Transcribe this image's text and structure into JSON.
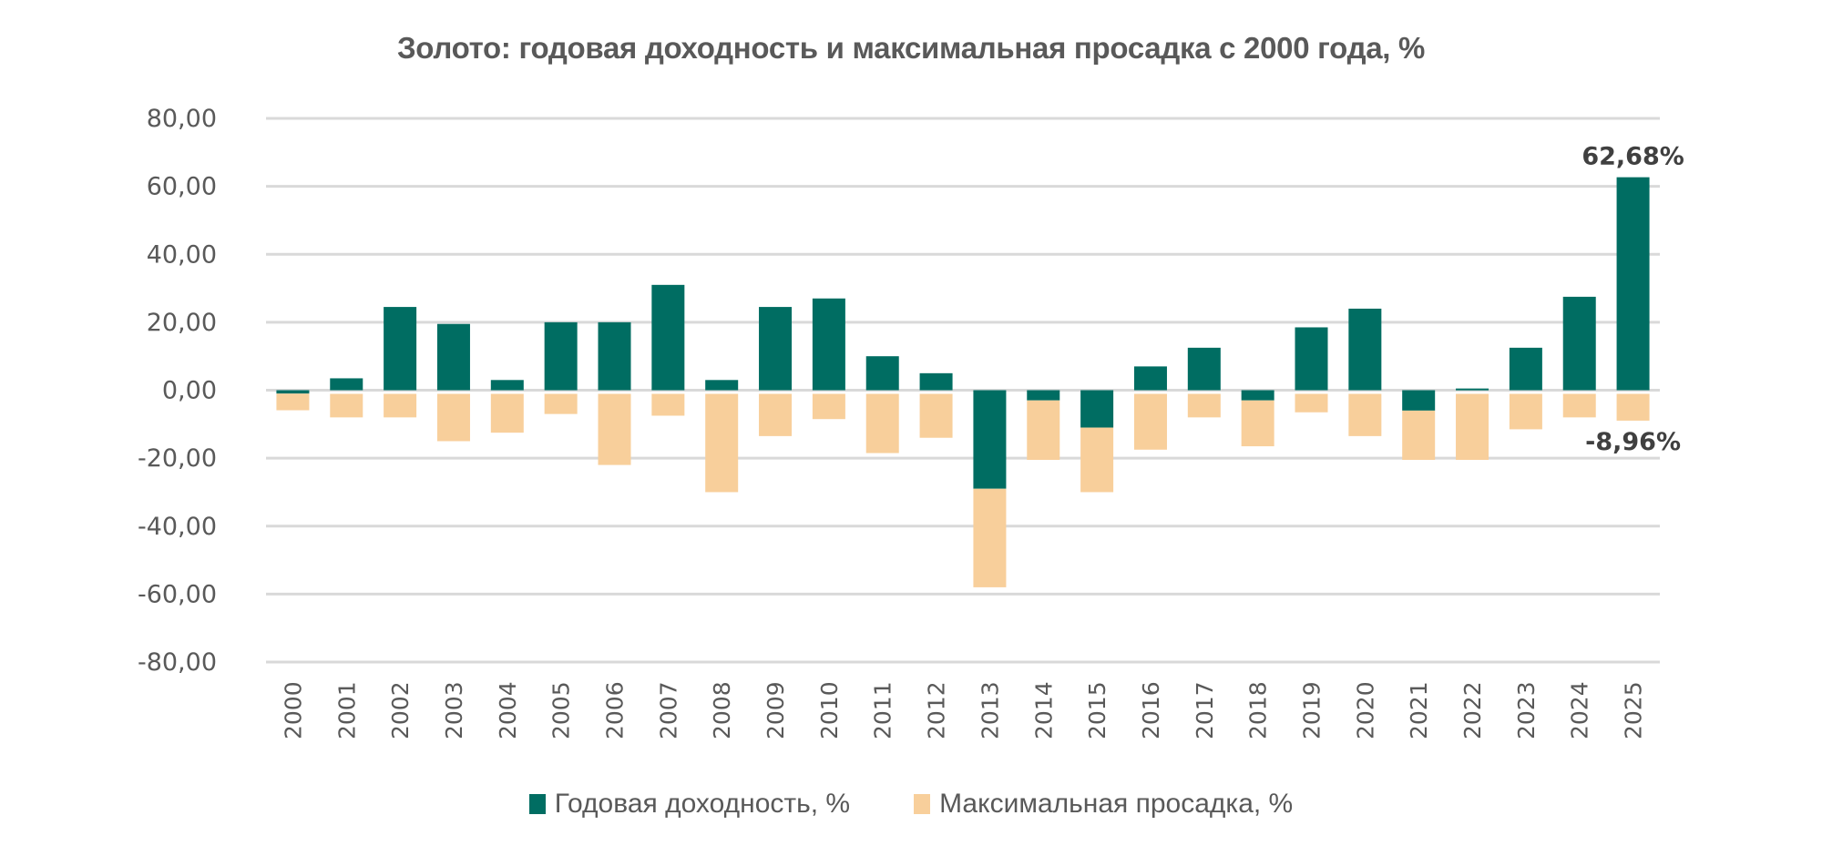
{
  "chart_data": {
    "type": "bar",
    "stacked": true,
    "title": "Золото: годовая доходность и максимальная просадка с 2000 года, %",
    "xlabel": "",
    "ylabel": "",
    "ylim": [
      -80,
      80
    ],
    "yticks": [
      80,
      60,
      40,
      20,
      0,
      -20,
      -40,
      -60,
      -80
    ],
    "ytick_labels": [
      "80,00",
      "60,00",
      "40,00",
      "20,00",
      "0,00",
      "-20,00",
      "-40,00",
      "-60,00",
      "-80,00"
    ],
    "grid": true,
    "legend_position": "bottom",
    "categories": [
      "2000",
      "2001",
      "2002",
      "2003",
      "2004",
      "2005",
      "2006",
      "2007",
      "2008",
      "2009",
      "2010",
      "2011",
      "2012",
      "2013",
      "2014",
      "2015",
      "2016",
      "2017",
      "2018",
      "2019",
      "2020",
      "2021",
      "2022",
      "2023",
      "2024",
      "2025"
    ],
    "series": [
      {
        "name": "Годовая доходность, %",
        "color": "#006d62",
        "values": [
          -1.0,
          3.5,
          24.5,
          19.5,
          3.0,
          20.0,
          20.0,
          31.0,
          3.0,
          24.5,
          27.0,
          10.0,
          5.0,
          -29.0,
          -3.0,
          -11.0,
          7.0,
          12.5,
          -3.0,
          18.5,
          24.0,
          -6.0,
          0.5,
          12.5,
          27.5,
          62.68
        ]
      },
      {
        "name": "Максимальная просадка, %",
        "color": "#f8cf9b",
        "values": [
          -5.9,
          -8.0,
          -8.0,
          -15.0,
          -12.5,
          -7.0,
          -22.0,
          -7.5,
          -30.0,
          -13.5,
          -8.5,
          -18.5,
          -14.0,
          -58.0,
          -20.5,
          -30.0,
          -17.5,
          -8.0,
          -16.5,
          -6.5,
          -13.5,
          -20.5,
          -20.5,
          -11.5,
          -8.0,
          -8.96
        ]
      }
    ],
    "annotations": [
      {
        "category": "2025",
        "series": "Годовая доходность, %",
        "text": "62,68%"
      },
      {
        "category": "2025",
        "series": "Максимальная просадка, %",
        "text": "-8,96%"
      }
    ]
  }
}
